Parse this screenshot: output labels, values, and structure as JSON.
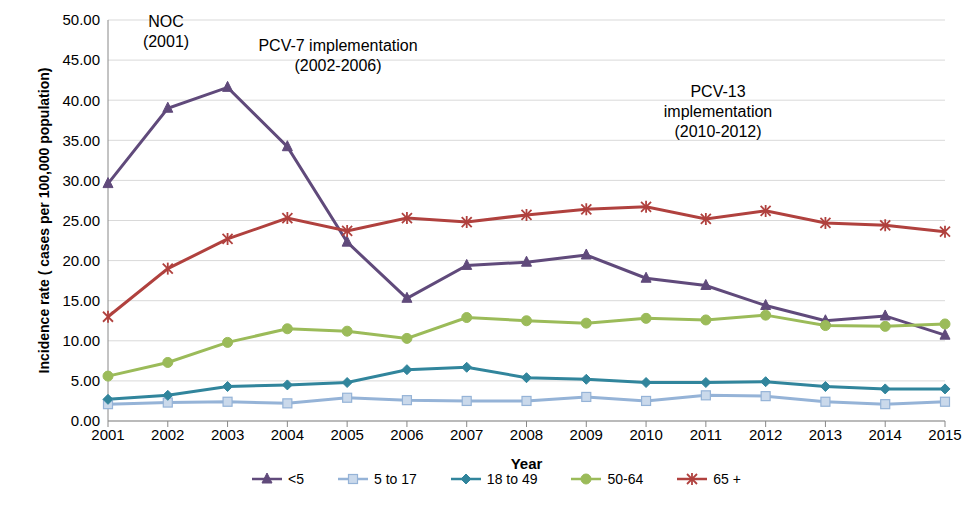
{
  "chart_data": {
    "type": "line",
    "x_label": "Year",
    "y_label": "Incidence rate ( cases per 100,000 population)",
    "annotations": [
      [
        "NOC",
        "(2001)"
      ],
      [
        "PCV-7 implementation",
        "(2002-2006)"
      ],
      [
        "PCV-13",
        "implementation",
        "(2010-2012)"
      ]
    ],
    "categories": [
      "2001",
      "2002",
      "2003",
      "2004",
      "2005",
      "2006",
      "2007",
      "2008",
      "2009",
      "2010",
      "2011",
      "2012",
      "2013",
      "2014",
      "2015"
    ],
    "series": [
      {
        "name": "<5",
        "color": "#604A7B",
        "marker": "triangle",
        "values": [
          29.6,
          39.0,
          41.6,
          34.2,
          22.3,
          15.3,
          19.4,
          19.8,
          20.7,
          17.8,
          16.9,
          14.4,
          12.5,
          13.1,
          10.7
        ]
      },
      {
        "name": "5 to 17",
        "color": "#95B3D7",
        "marker": "square",
        "values": [
          2.1,
          2.3,
          2.4,
          2.2,
          2.9,
          2.6,
          2.5,
          2.5,
          3.0,
          2.5,
          3.2,
          3.1,
          2.4,
          2.1,
          2.4
        ]
      },
      {
        "name": "18 to 49",
        "color": "#31859C",
        "marker": "diamond",
        "values": [
          2.7,
          3.2,
          4.3,
          4.5,
          4.8,
          6.4,
          6.7,
          5.4,
          5.2,
          4.8,
          4.8,
          4.9,
          4.3,
          4.0,
          4.0
        ]
      },
      {
        "name": "50-64",
        "color": "#9BBB59",
        "marker": "circle",
        "values": [
          5.6,
          7.3,
          9.8,
          11.5,
          11.2,
          10.3,
          12.9,
          12.5,
          12.2,
          12.8,
          12.6,
          13.2,
          11.9,
          11.8,
          12.1
        ]
      },
      {
        "name": "65 +",
        "color": "#B0413E",
        "marker": "star",
        "values": [
          13.0,
          19.0,
          22.7,
          25.3,
          23.7,
          25.3,
          24.8,
          25.7,
          26.4,
          26.7,
          25.2,
          26.2,
          24.7,
          24.4,
          23.6
        ]
      }
    ],
    "ylim": [
      0,
      50
    ],
    "yticks": [
      {
        "value": 0,
        "label": "0.00"
      },
      {
        "value": 5,
        "label": "5.00"
      },
      {
        "value": 10,
        "label": "10.00"
      },
      {
        "value": 15,
        "label": "15.00"
      },
      {
        "value": 20,
        "label": "20.00"
      },
      {
        "value": 25,
        "label": "25.00"
      },
      {
        "value": 30,
        "label": "30.00"
      },
      {
        "value": 35,
        "label": "35.00"
      },
      {
        "value": 40,
        "label": "40.00"
      },
      {
        "value": 45,
        "label": "45.00"
      },
      {
        "value": 50,
        "label": "50.00"
      }
    ],
    "grid": true,
    "legend": "bottom"
  }
}
